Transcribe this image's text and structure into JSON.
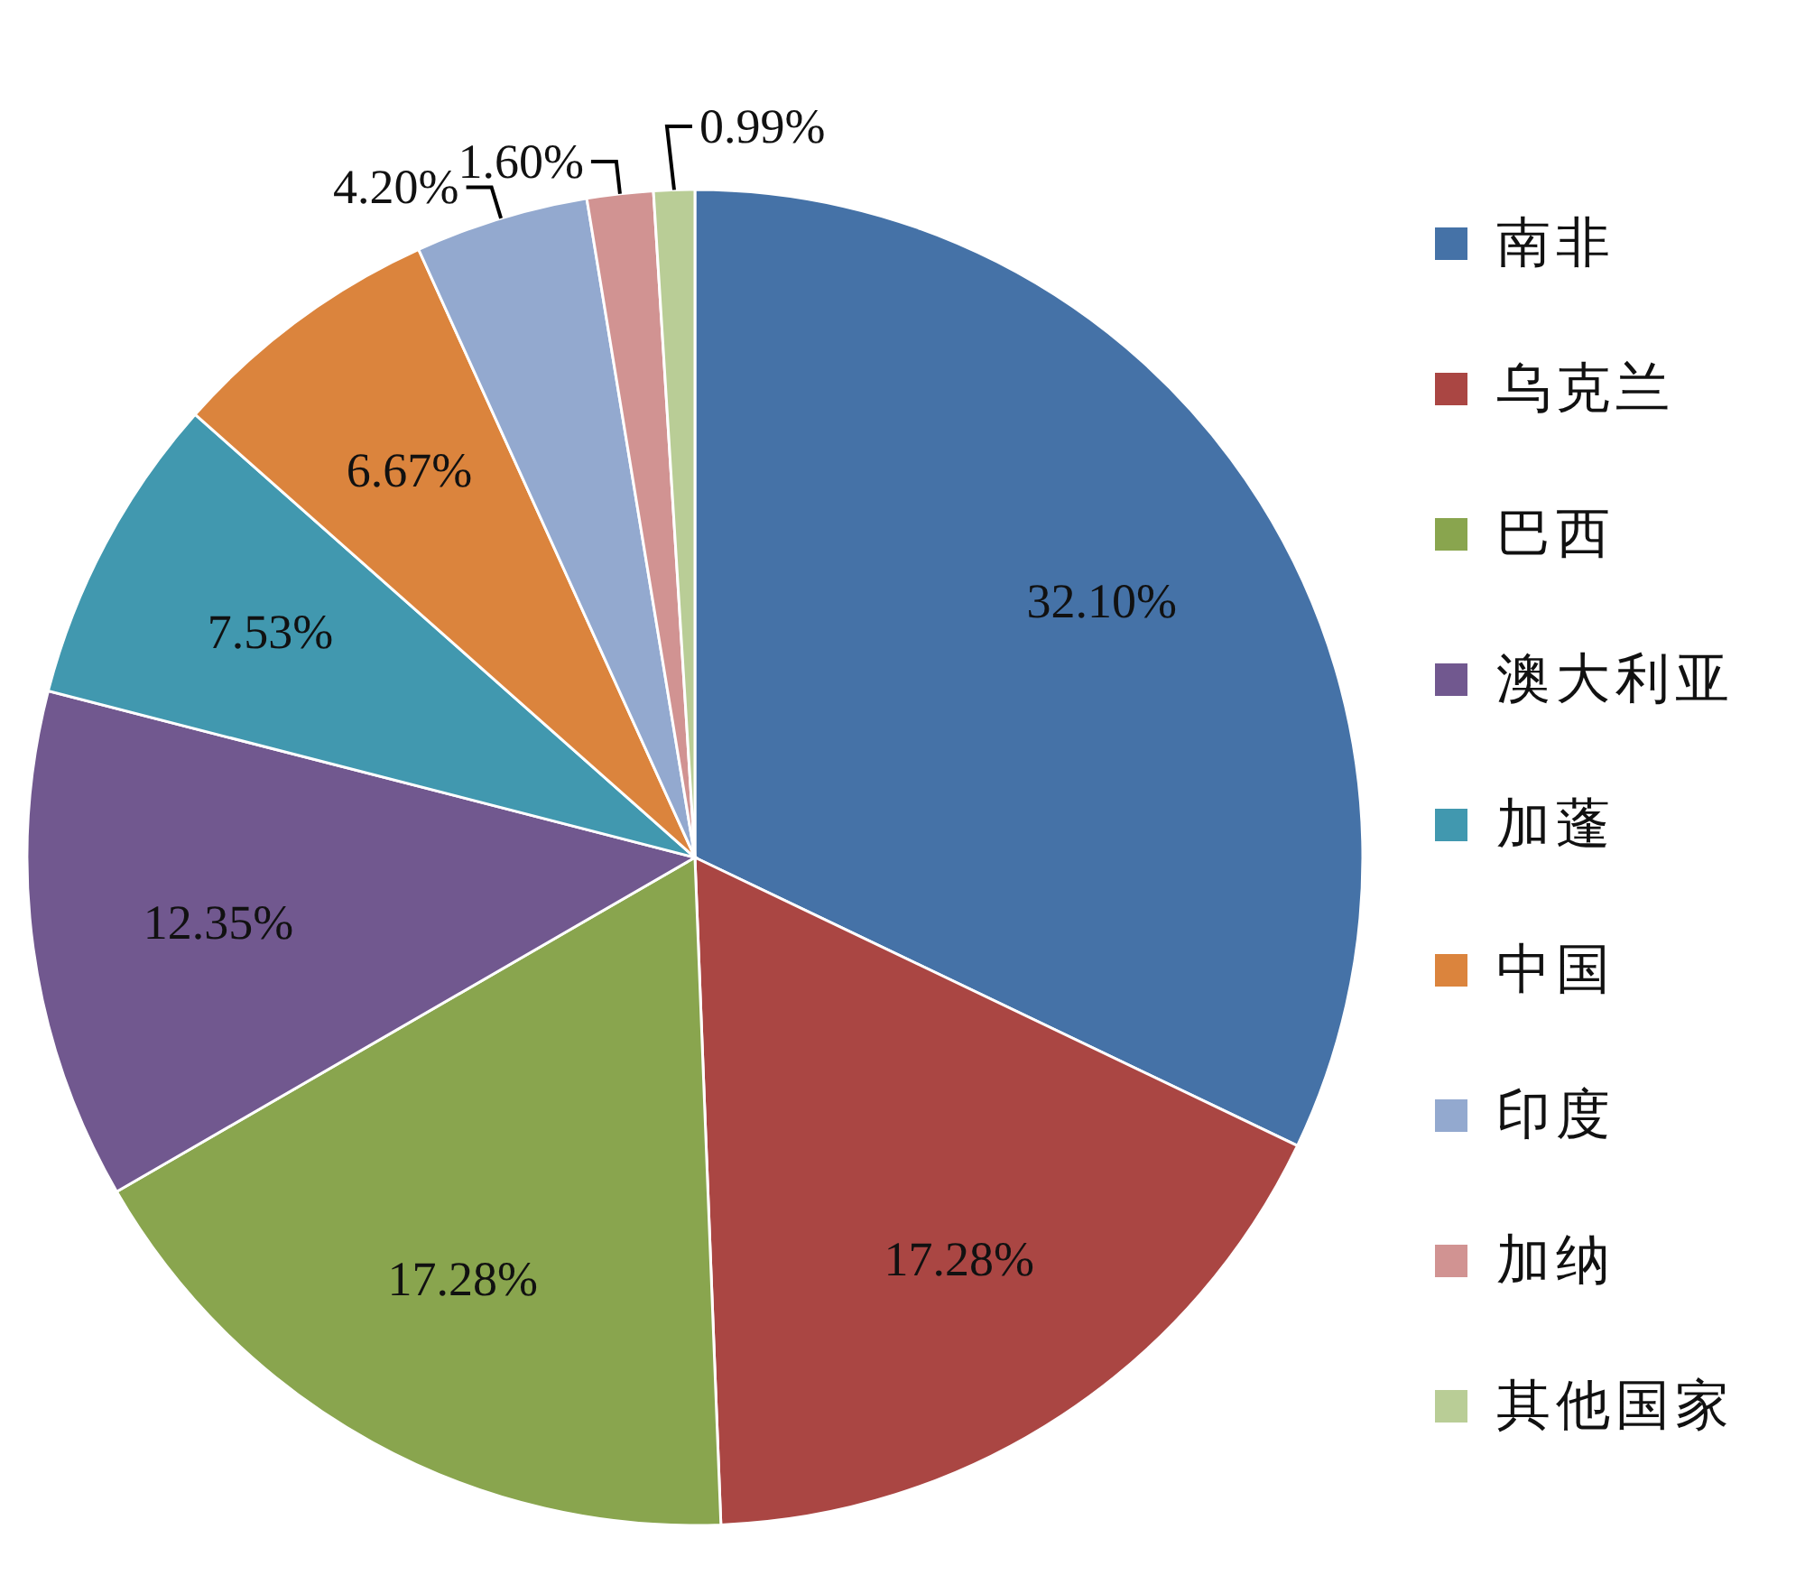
{
  "chart_data": {
    "type": "pie",
    "categories": [
      "南非",
      "乌克兰",
      "巴西",
      "澳大利亚",
      "加蓬",
      "中国",
      "印度",
      "加纳",
      "其他国家"
    ],
    "values": [
      32.1,
      17.28,
      17.28,
      12.35,
      7.53,
      6.67,
      4.2,
      1.6,
      0.99
    ],
    "value_labels": [
      "32.10%",
      "17.28%",
      "17.28%",
      "12.35%",
      "7.53%",
      "6.67%",
      "4.20%",
      "1.60%",
      "0.99%"
    ],
    "colors": [
      "#4572a7",
      "#aa4643",
      "#89a54e",
      "#71588f",
      "#4198af",
      "#db843d",
      "#93a9cf",
      "#d19392",
      "#b9cd96"
    ],
    "legend": "right"
  }
}
